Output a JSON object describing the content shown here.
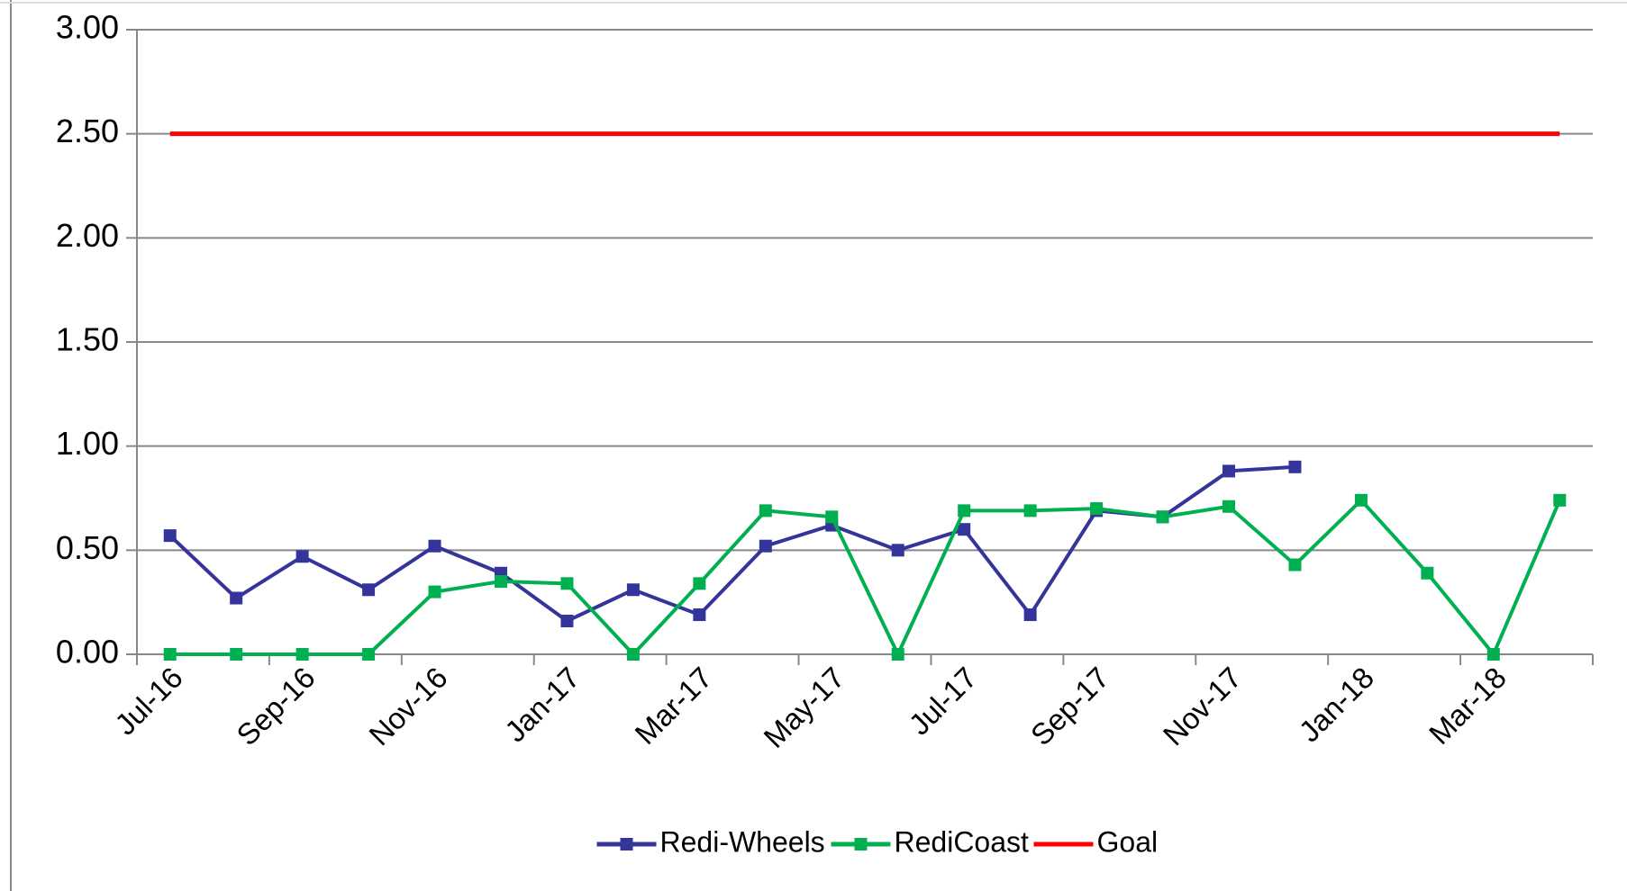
{
  "chart_data": {
    "type": "line",
    "categories": [
      "Jul-16",
      null,
      "Sep-16",
      null,
      "Nov-16",
      null,
      "Jan-17",
      null,
      "Mar-17",
      null,
      "May-17",
      null,
      "Jul-17",
      null,
      "Sep-17",
      null,
      "Nov-17",
      null,
      "Jan-18",
      null,
      "Mar-18",
      null
    ],
    "series": [
      {
        "name": "Redi-Wheels",
        "color": "#34349a",
        "marker": "square",
        "values": [
          0.57,
          0.27,
          0.47,
          0.31,
          0.52,
          0.39,
          0.16,
          0.31,
          0.19,
          0.52,
          0.62,
          0.5,
          0.6,
          0.19,
          0.69,
          0.66,
          0.88,
          0.9,
          null,
          null,
          null,
          null
        ]
      },
      {
        "name": "RediCoast",
        "color": "#00b050",
        "marker": "square",
        "values": [
          0,
          0,
          0,
          0,
          0.3,
          0.35,
          0.34,
          0,
          0.34,
          0.69,
          0.66,
          0,
          0.69,
          0.69,
          0.7,
          0.66,
          0.71,
          0.43,
          0.74,
          0.39,
          0,
          0.74
        ]
      },
      {
        "name": "Goal",
        "color": "#ff0000",
        "marker": null,
        "values": [
          2.5,
          2.5,
          2.5,
          2.5,
          2.5,
          2.5,
          2.5,
          2.5,
          2.5,
          2.5,
          2.5,
          2.5,
          2.5,
          2.5,
          2.5,
          2.5,
          2.5,
          2.5,
          2.5,
          2.5,
          2.5,
          2.5
        ]
      }
    ],
    "ylim": [
      0,
      3
    ],
    "yticks": [
      {
        "value": 0,
        "label": "0.00"
      },
      {
        "value": 0.5,
        "label": "0.50"
      },
      {
        "value": 1,
        "label": "1.00"
      },
      {
        "value": 1.5,
        "label": "1.50"
      },
      {
        "value": 2,
        "label": "2.00"
      },
      {
        "value": 2.5,
        "label": "2.50"
      },
      {
        "value": 3,
        "label": "3.00"
      }
    ],
    "grid": true,
    "legend": "bottom"
  }
}
